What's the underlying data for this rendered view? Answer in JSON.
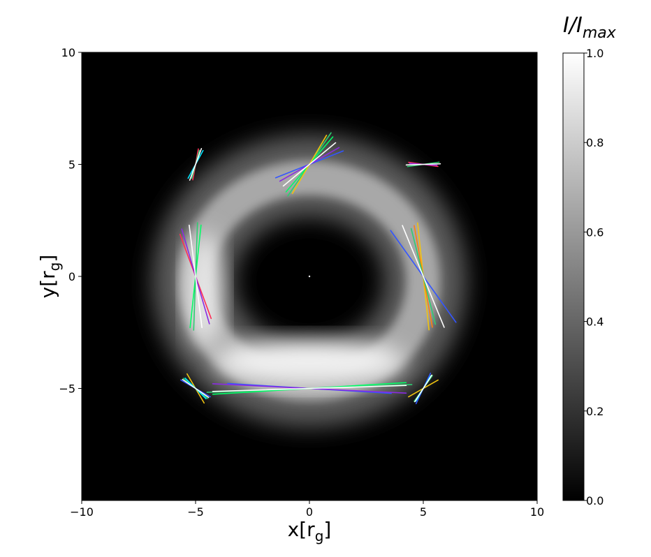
{
  "chart_data": {
    "type": "heatmap",
    "title": "",
    "xlabel": {
      "main": "x[r",
      "sub": "g",
      "close": "]"
    },
    "ylabel": {
      "main": "y[r",
      "sub": "g",
      "close": "]"
    },
    "xlim": [
      -10,
      10
    ],
    "ylim": [
      -10,
      10
    ],
    "x_ticks": [
      {
        "value": -10,
        "label": "−10"
      },
      {
        "value": -5,
        "label": "−5"
      },
      {
        "value": 0,
        "label": "0"
      },
      {
        "value": 5,
        "label": "5"
      },
      {
        "value": 10,
        "label": "10"
      }
    ],
    "y_ticks": [
      {
        "value": 10,
        "label": "10"
      },
      {
        "value": 5,
        "label": "5"
      },
      {
        "value": 0,
        "label": "0"
      },
      {
        "value": -5,
        "label": "−5"
      }
    ],
    "image": {
      "description_values": "normalized intensity of a thin emission ring",
      "ring_center": [
        0,
        -0.2
      ],
      "ring_radius_x": 5.0,
      "ring_radius_y": 4.6,
      "ring_width": 1.5,
      "bottom_brightening": true,
      "colormap": "gray"
    },
    "colorbar": {
      "label_main": "I/I",
      "label_sub": "max",
      "range": [
        0.0,
        1.0
      ],
      "ticks": [
        {
          "value": 1.0,
          "label": "1.0"
        },
        {
          "value": 0.8,
          "label": "0.8"
        },
        {
          "value": 0.6,
          "label": "0.6"
        },
        {
          "value": 0.4,
          "label": "0.4"
        },
        {
          "value": 0.2,
          "label": "0.2"
        },
        {
          "value": 0.0,
          "label": "0.0"
        }
      ]
    },
    "polarization_sticks": [
      {
        "center": [
          -5,
          5
        ],
        "lines": [
          {
            "color": "#00e5ff",
            "angle": 62,
            "length": 1.4
          },
          {
            "color": "#ff2d55",
            "angle": 80,
            "length": 1.4
          },
          {
            "color": "#8a2be2",
            "angle": 72,
            "length": 1.2
          },
          {
            "color": "#2ecc71",
            "angle": 75,
            "length": 1.3
          },
          {
            "color": "#ffffff",
            "angle": 70,
            "length": 1.5
          }
        ]
      },
      {
        "center": [
          0,
          5
        ],
        "lines": [
          {
            "color": "#3355ff",
            "angle": 22,
            "length": 3.2
          },
          {
            "color": "#8a2be2",
            "angle": 30,
            "length": 3.0
          },
          {
            "color": "#2ecc71",
            "angle": 56,
            "length": 3.4
          },
          {
            "color": "#00ff66",
            "angle": 50,
            "length": 3.2
          },
          {
            "color": "#f1c40f",
            "angle": 60,
            "length": 3.0
          },
          {
            "color": "#ffffff",
            "angle": 40,
            "length": 3.0
          }
        ]
      },
      {
        "center": [
          5,
          5
        ],
        "lines": [
          {
            "color": "#ff2d55",
            "angle": -8,
            "length": 1.3
          },
          {
            "color": "#2ecc71",
            "angle": 8,
            "length": 1.4
          },
          {
            "color": "#8a2be2",
            "angle": -4,
            "length": 1.2
          },
          {
            "color": "#ffffff",
            "angle": 2,
            "length": 1.5
          }
        ]
      },
      {
        "center": [
          -5,
          0
        ],
        "lines": [
          {
            "color": "#ff2d55",
            "angle": 110,
            "length": 4.0
          },
          {
            "color": "#8a2be2",
            "angle": 106,
            "length": 4.4
          },
          {
            "color": "#00ff66",
            "angle": 84,
            "length": 4.6
          },
          {
            "color": "#2ecc71",
            "angle": 88,
            "length": 4.8
          },
          {
            "color": "#ffffff",
            "angle": 97,
            "length": 4.6
          }
        ]
      },
      {
        "center": [
          5,
          0
        ],
        "lines": [
          {
            "color": "#3355ff",
            "angle": 125,
            "length": 5.0
          },
          {
            "color": "#f1c40f",
            "angle": 96,
            "length": 4.8
          },
          {
            "color": "#ff7f0e",
            "angle": 100,
            "length": 4.6
          },
          {
            "color": "#2ecc71",
            "angle": 104,
            "length": 4.4
          },
          {
            "color": "#ffffff",
            "angle": 112,
            "length": 4.9
          }
        ]
      },
      {
        "center": [
          -5,
          -5
        ],
        "lines": [
          {
            "color": "#3355ff",
            "angle": 150,
            "length": 1.5
          },
          {
            "color": "#f1c40f",
            "angle": 120,
            "length": 1.5
          },
          {
            "color": "#2ecc71",
            "angle": 140,
            "length": 1.4
          },
          {
            "color": "#00e5ff",
            "angle": 135,
            "length": 1.3
          },
          {
            "color": "#ffffff",
            "angle": 145,
            "length": 1.4
          }
        ]
      },
      {
        "center": [
          0,
          -5
        ],
        "lines": [
          {
            "color": "#3355ff",
            "angle": -3.5,
            "length": 7.2
          },
          {
            "color": "#8a2be2",
            "angle": -2.8,
            "length": 8.5
          },
          {
            "color": "#00ff66",
            "angle": 3.5,
            "length": 8.5
          },
          {
            "color": "#2ecc71",
            "angle": 2.2,
            "length": 9.0
          },
          {
            "color": "#ffffff",
            "angle": 1.8,
            "length": 8.5
          }
        ]
      },
      {
        "center": [
          5,
          -5
        ],
        "lines": [
          {
            "color": "#3355ff",
            "angle": 65,
            "length": 1.5
          },
          {
            "color": "#f1c40f",
            "angle": 30,
            "length": 1.5
          },
          {
            "color": "#2ecc71",
            "angle": 55,
            "length": 1.4
          },
          {
            "color": "#00e5ff",
            "angle": 60,
            "length": 1.3
          },
          {
            "color": "#ffffff",
            "angle": 58,
            "length": 1.4
          }
        ]
      }
    ]
  }
}
